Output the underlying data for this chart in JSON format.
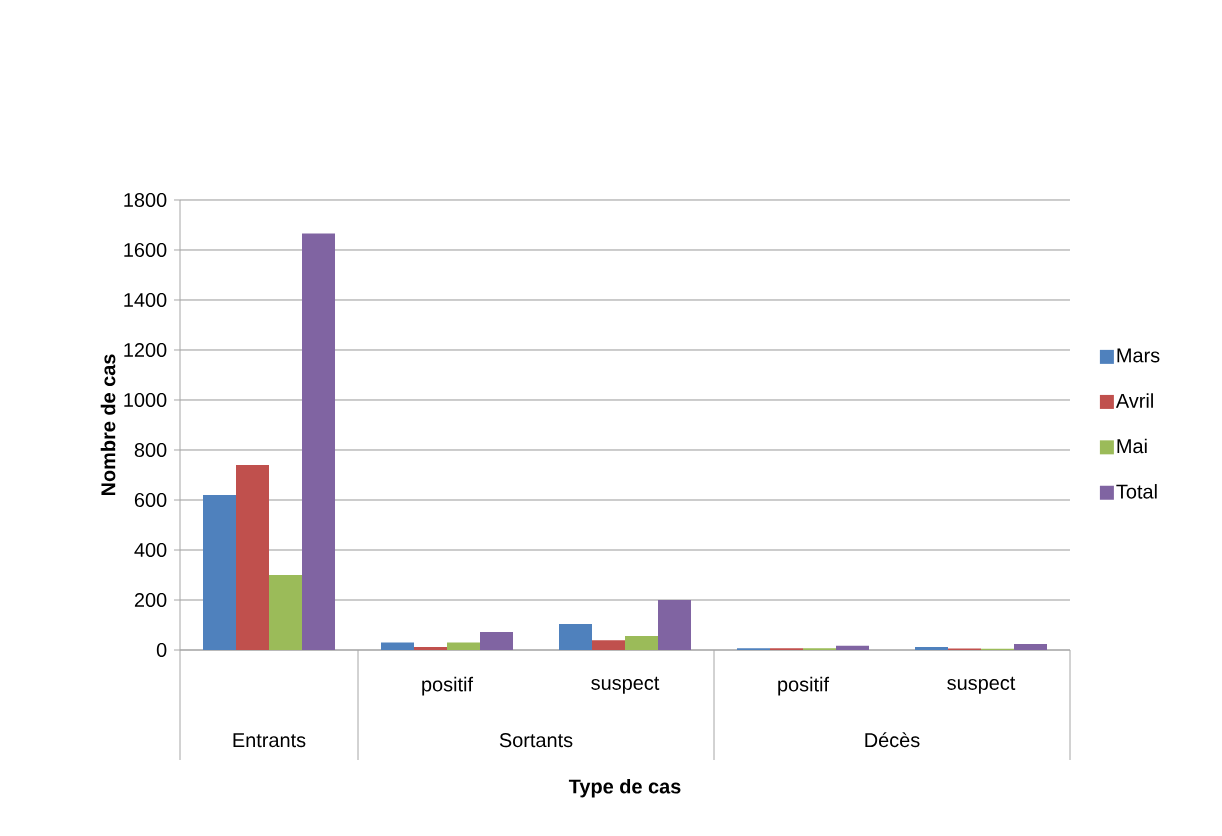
{
  "chart_data": {
    "type": "bar",
    "xlabel": "Type de cas",
    "ylabel": "Nombre de cas",
    "categories": [
      null,
      "positif",
      "suspect",
      "positif",
      "suspect"
    ],
    "annotations": [
      "Entrants",
      "Sortants",
      "Décès"
    ],
    "series": [
      {
        "name": "Mars",
        "color": "#4f81bd",
        "values": [
          620,
          30,
          104,
          7,
          12
        ]
      },
      {
        "name": "Avril",
        "color": "#c0504d",
        "values": [
          740,
          12,
          39,
          7,
          6
        ]
      },
      {
        "name": "Mai",
        "color": "#9bbb59",
        "values": [
          300,
          30,
          56,
          7,
          5
        ]
      },
      {
        "name": "Total",
        "color": "#8064a2",
        "values": [
          1666,
          72,
          200,
          17,
          24
        ]
      }
    ],
    "ylim": [
      0,
      1800
    ],
    "yticks": [
      0,
      200,
      400,
      600,
      800,
      1000,
      1200,
      1400,
      1600,
      1800
    ],
    "grid": "y",
    "legend": "right"
  }
}
